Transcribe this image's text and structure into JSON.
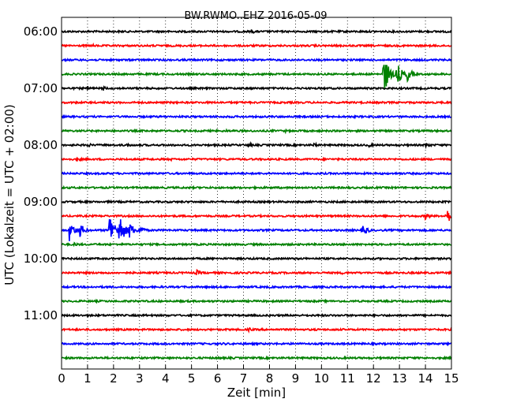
{
  "chart_data": {
    "type": "line",
    "title": "BW.RWMO..EHZ 2016-05-09",
    "xlabel": "Zeit  [min]",
    "ylabel": "UTC (Lokalzeit = UTC + 02:00)",
    "xlim": [
      0,
      15
    ],
    "x_ticks": [
      "0",
      "1",
      "2",
      "3",
      "4",
      "5",
      "6",
      "7",
      "8",
      "9",
      "10",
      "11",
      "12",
      "13",
      "14",
      "15"
    ],
    "y_ticks": [
      "06:00",
      "07:00",
      "08:00",
      "09:00",
      "10:00",
      "11:00"
    ],
    "trace_interval_min": 15,
    "colors_cycle": [
      "#000000",
      "#ff0000",
      "#0000ff",
      "#008000"
    ],
    "grid": "vertical dotted at each minute",
    "series": [
      {
        "start": "06:00",
        "color": "#000000",
        "events": [
          {
            "t": 7.3,
            "amp": 3
          },
          {
            "t": 14.8,
            "amp": 2
          }
        ]
      },
      {
        "start": "06:15",
        "color": "#ff0000",
        "events": [
          {
            "t": 1.2,
            "amp": 2
          },
          {
            "t": 9.7,
            "amp": 2
          }
        ]
      },
      {
        "start": "06:30",
        "color": "#0000ff",
        "events": []
      },
      {
        "start": "06:45",
        "color": "#008000",
        "events": [
          {
            "t": 12.4,
            "amp": 28
          },
          {
            "t": 12.9,
            "amp": 16
          },
          {
            "t": 13.3,
            "amp": 10
          }
        ]
      },
      {
        "start": "07:00",
        "color": "#000000",
        "events": [
          {
            "t": 1.0,
            "amp": 3
          },
          {
            "t": 1.6,
            "amp": 3
          }
        ]
      },
      {
        "start": "07:15",
        "color": "#ff0000",
        "events": []
      },
      {
        "start": "07:30",
        "color": "#0000ff",
        "events": [
          {
            "t": 6.5,
            "amp": 2
          }
        ]
      },
      {
        "start": "07:45",
        "color": "#008000",
        "events": [
          {
            "t": 6.3,
            "amp": 2
          },
          {
            "t": 8.6,
            "amp": 2
          }
        ]
      },
      {
        "start": "08:00",
        "color": "#000000",
        "events": [
          {
            "t": 1.0,
            "amp": 3
          },
          {
            "t": 2.5,
            "amp": 3
          },
          {
            "t": 7.2,
            "amp": 3
          },
          {
            "t": 9.7,
            "amp": 3
          },
          {
            "t": 11.8,
            "amp": 3
          },
          {
            "t": 14.0,
            "amp": 4
          }
        ]
      },
      {
        "start": "08:15",
        "color": "#ff0000",
        "events": [
          {
            "t": 0.6,
            "amp": 3
          },
          {
            "t": 4.2,
            "amp": 2
          }
        ]
      },
      {
        "start": "08:30",
        "color": "#0000ff",
        "events": []
      },
      {
        "start": "08:45",
        "color": "#008000",
        "events": []
      },
      {
        "start": "09:00",
        "color": "#000000",
        "events": []
      },
      {
        "start": "09:15",
        "color": "#ff0000",
        "events": [
          {
            "t": 14.0,
            "amp": 5
          },
          {
            "t": 14.8,
            "amp": 12
          }
        ]
      },
      {
        "start": "09:30",
        "color": "#0000ff",
        "events": [
          {
            "t": 0.3,
            "amp": 14
          },
          {
            "t": 0.7,
            "amp": 10
          },
          {
            "t": 1.85,
            "amp": 24
          },
          {
            "t": 2.2,
            "amp": 26
          },
          {
            "t": 2.6,
            "amp": 12
          },
          {
            "t": 3.0,
            "amp": 7
          },
          {
            "t": 11.6,
            "amp": 8
          }
        ]
      },
      {
        "start": "09:45",
        "color": "#008000",
        "events": [
          {
            "t": 0.5,
            "amp": 3
          }
        ]
      },
      {
        "start": "10:00",
        "color": "#000000",
        "events": []
      },
      {
        "start": "10:15",
        "color": "#ff0000",
        "events": [
          {
            "t": 5.2,
            "amp": 4
          },
          {
            "t": 10.8,
            "amp": 2
          }
        ]
      },
      {
        "start": "10:30",
        "color": "#0000ff",
        "events": []
      },
      {
        "start": "10:45",
        "color": "#008000",
        "events": []
      },
      {
        "start": "11:00",
        "color": "#000000",
        "events": [
          {
            "t": 3.2,
            "amp": 2
          }
        ]
      },
      {
        "start": "11:15",
        "color": "#ff0000",
        "events": [
          {
            "t": 7.2,
            "amp": 3
          }
        ]
      },
      {
        "start": "11:30",
        "color": "#0000ff",
        "events": [
          {
            "t": 6.2,
            "amp": 2
          }
        ]
      },
      {
        "start": "11:45",
        "color": "#008000",
        "events": [
          {
            "t": 6.0,
            "amp": 2
          }
        ]
      }
    ]
  }
}
